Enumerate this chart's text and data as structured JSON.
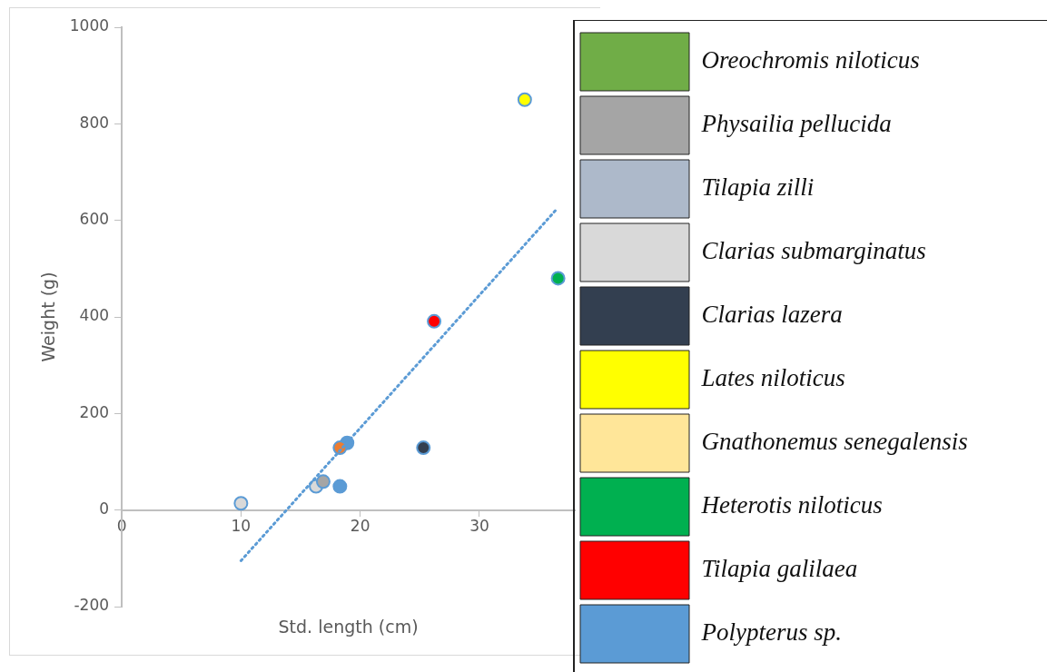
{
  "chart_data": {
    "type": "scatter",
    "xlabel": "Std. length (cm)",
    "ylabel": "Weight (g)",
    "xlim": [
      0,
      38
    ],
    "xticks": [
      0,
      10,
      20,
      30
    ],
    "ylim": [
      -200,
      1000
    ],
    "yticks": [
      -200,
      0,
      200,
      400,
      600,
      800,
      1000
    ],
    "marker": "circle",
    "legend": "right",
    "series": [
      {
        "name": "Oreochromis niloticus",
        "color": "#70ad47"
      },
      {
        "name": "Physailia pellucida",
        "color": "#a5a5a5",
        "x": [
          16.9
        ],
        "values": [
          59
        ]
      },
      {
        "name": "Tilapia zilli",
        "color": "#adb9ca"
      },
      {
        "name": "Clarias submarginatus",
        "color": "#d9d9d9",
        "x": [
          10,
          16.3
        ],
        "values": [
          14,
          49
        ]
      },
      {
        "name": "Clarias lazera",
        "color": "#333f50",
        "x": [
          25.3
        ],
        "values": [
          129
        ]
      },
      {
        "name": "Lates niloticus",
        "color": "#ffff00",
        "x": [
          33.8
        ],
        "values": [
          850
        ]
      },
      {
        "name": "Gnathonemus senegalensis",
        "color": "#ffe699"
      },
      {
        "name": "Heterotis niloticus",
        "color": "#00b050",
        "x": [
          36.6
        ],
        "values": [
          480
        ]
      },
      {
        "name": "Tilapia galilaea",
        "color": "#ff0000",
        "x": [
          26.2
        ],
        "values": [
          391
        ]
      },
      {
        "color": "#ed7d31",
        "x": [
          18.3
        ],
        "values": [
          129
        ]
      },
      {
        "name": "Polypterus sp.",
        "color": "#5b9bd5",
        "x": [
          18.9,
          18.3
        ],
        "values": [
          139,
          49
        ]
      },
      {
        "type": "line",
        "color": "#5b9bd5",
        "line_style": "dotted",
        "marker": "none",
        "x": [
          10,
          36.4
        ],
        "values": [
          -105,
          621
        ]
      }
    ]
  }
}
